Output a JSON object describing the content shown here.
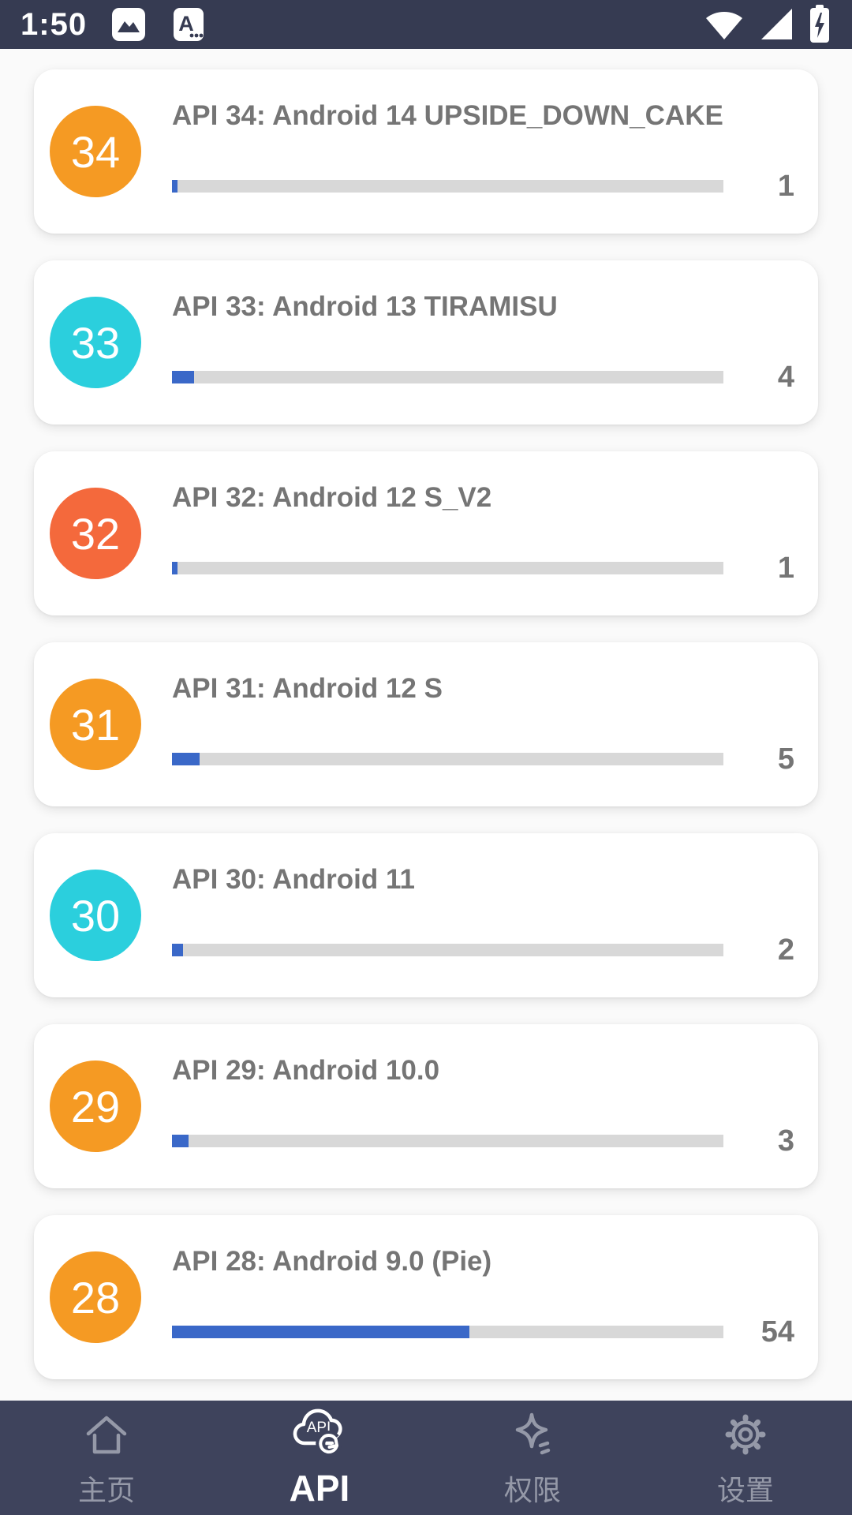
{
  "status_bar": {
    "time": "1:50",
    "left_icons": [
      "photo-icon",
      "keyboard-a-icon"
    ],
    "right_icons": [
      "wifi-icon",
      "signal-icon",
      "battery-charging-icon"
    ]
  },
  "colors": {
    "status_bar_bg": "#363B52",
    "nav_bg": "#3E435C",
    "page_bg": "#FAFAFA",
    "card_bg": "#FFFFFF",
    "title_text": "#757575",
    "progress_fill": "#3A68C8",
    "progress_track": "#D8D8D8",
    "badge_orange": "#F59A23",
    "badge_cyan": "#2BCFDD",
    "badge_tomato": "#F4693C",
    "active_nav": "#FFFFFF",
    "inactive_nav": "#9599A8"
  },
  "cards": [
    {
      "api": "34",
      "title": "API 34: Android 14 UPSIDE_DOWN_CAKE",
      "count": "1",
      "progress_percent": 1,
      "badge_color": "#F59A23"
    },
    {
      "api": "33",
      "title": "API 33: Android 13 TIRAMISU",
      "count": "4",
      "progress_percent": 4,
      "badge_color": "#2BCFDD"
    },
    {
      "api": "32",
      "title": "API 32: Android 12 S_V2",
      "count": "1",
      "progress_percent": 1,
      "badge_color": "#F4693C"
    },
    {
      "api": "31",
      "title": "API 31: Android 12 S",
      "count": "5",
      "progress_percent": 5,
      "badge_color": "#F59A23"
    },
    {
      "api": "30",
      "title": "API 30: Android 11",
      "count": "2",
      "progress_percent": 2,
      "badge_color": "#2BCFDD"
    },
    {
      "api": "29",
      "title": "API 29: Android 10.0",
      "count": "3",
      "progress_percent": 3,
      "badge_color": "#F59A23"
    },
    {
      "api": "28",
      "title": "API 28: Android 9.0 (Pie)",
      "count": "54",
      "progress_percent": 54,
      "badge_color": "#F59A23"
    }
  ],
  "bottom_nav": {
    "items": [
      {
        "label": "主页",
        "icon": "home-icon",
        "active": false
      },
      {
        "label": "API",
        "icon": "api-cloud-icon",
        "active": true
      },
      {
        "label": "权限",
        "icon": "sparkle-icon",
        "active": false
      },
      {
        "label": "设置",
        "icon": "gear-icon",
        "active": false
      }
    ]
  }
}
